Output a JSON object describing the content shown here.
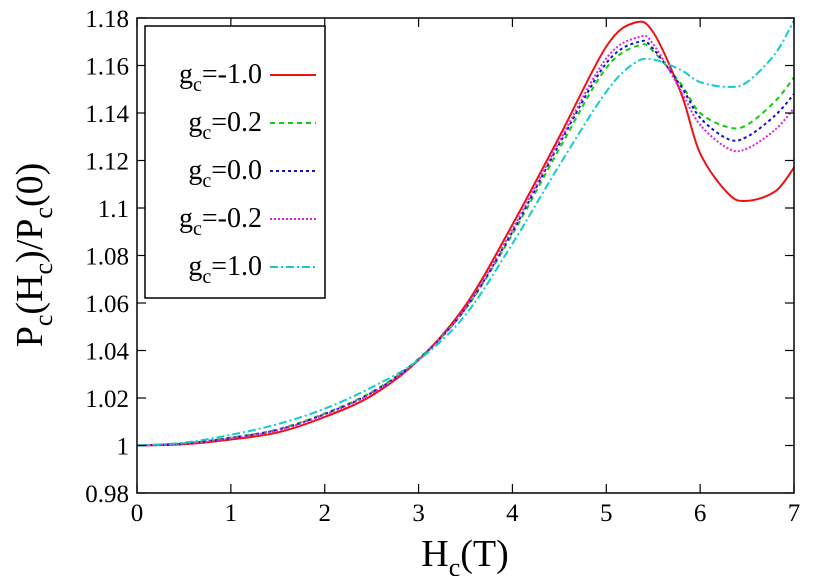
{
  "chart_data": {
    "type": "line",
    "xlabel_main": "H",
    "xlabel_sub": "c",
    "xlabel_tail": "(T)",
    "ylabel_parts": {
      "p1": "P",
      "s1": "c",
      "p2": "(H",
      "s2": "c",
      "p3": ")/P",
      "s3": "c",
      "p4": "(0)"
    },
    "xlim": [
      0,
      7
    ],
    "ylim": [
      0.98,
      1.18
    ],
    "xticks": [
      0,
      1,
      2,
      3,
      4,
      5,
      6,
      7
    ],
    "xtick_labels": [
      "0",
      "1",
      "2",
      "3",
      "4",
      "5",
      "6",
      "7"
    ],
    "yticks": [
      0.98,
      1.0,
      1.02,
      1.04,
      1.06,
      1.08,
      1.1,
      1.12,
      1.14,
      1.16,
      1.18
    ],
    "ytick_labels": [
      "0.98",
      "1",
      "1.02",
      "1.04",
      "1.06",
      "1.08",
      "1.1",
      "1.12",
      "1.14",
      "1.16",
      "1.18"
    ],
    "grid": false,
    "legend_position": "top-left",
    "series": [
      {
        "name": "gc=-1.0",
        "label_main": "g",
        "label_sub": "c",
        "label_tail": "=-1.0",
        "color": "#ee1111",
        "dash": "",
        "x": [
          0,
          0.5,
          1.0,
          1.5,
          2.0,
          2.5,
          3.0,
          3.5,
          4.0,
          4.5,
          5.0,
          5.3,
          5.5,
          5.8,
          6.0,
          6.3,
          6.5,
          6.8,
          7.0
        ],
        "y": [
          1.0,
          1.0005,
          1.0025,
          1.0055,
          1.012,
          1.021,
          1.036,
          1.059,
          1.093,
          1.13,
          1.168,
          1.178,
          1.174,
          1.148,
          1.123,
          1.106,
          1.103,
          1.107,
          1.117
        ]
      },
      {
        "name": "gc=0.2",
        "label_main": "g",
        "label_sub": "c",
        "label_tail": "=0.2",
        "color": "#11cc11",
        "dash": "5,4",
        "x": [
          0,
          0.5,
          1.0,
          1.5,
          2.0,
          2.5,
          3.0,
          3.5,
          4.0,
          4.5,
          5.0,
          5.35,
          5.5,
          5.8,
          6.0,
          6.3,
          6.5,
          6.8,
          7.0
        ],
        "y": [
          1.0,
          1.0009,
          1.0033,
          1.0068,
          1.0135,
          1.0225,
          1.0365,
          1.0575,
          1.089,
          1.125,
          1.159,
          1.1685,
          1.166,
          1.152,
          1.14,
          1.134,
          1.135,
          1.145,
          1.155
        ]
      },
      {
        "name": "gc=0.0",
        "label_main": "g",
        "label_sub": "c",
        "label_tail": "=0.0",
        "color": "#1111cc",
        "dash": "3,3",
        "x": [
          0,
          0.5,
          1.0,
          1.5,
          2.0,
          2.5,
          3.0,
          3.5,
          4.0,
          4.5,
          5.0,
          5.35,
          5.5,
          5.8,
          6.0,
          6.3,
          6.5,
          6.8,
          7.0
        ],
        "y": [
          1.0,
          1.0008,
          1.0032,
          1.0066,
          1.0132,
          1.0222,
          1.0362,
          1.0577,
          1.09,
          1.127,
          1.161,
          1.17,
          1.167,
          1.151,
          1.138,
          1.129,
          1.13,
          1.139,
          1.148
        ]
      },
      {
        "name": "gc=-0.2",
        "label_main": "g",
        "label_sub": "c",
        "label_tail": "=-0.2",
        "color": "#dd22dd",
        "dash": "2,2",
        "x": [
          0,
          0.5,
          1.0,
          1.5,
          2.0,
          2.5,
          3.0,
          3.5,
          4.0,
          4.5,
          5.0,
          5.35,
          5.5,
          5.8,
          6.0,
          6.3,
          6.5,
          6.8,
          7.0
        ],
        "y": [
          1.0,
          1.0007,
          1.003,
          1.0064,
          1.013,
          1.022,
          1.036,
          1.058,
          1.091,
          1.128,
          1.163,
          1.172,
          1.169,
          1.149,
          1.135,
          1.125,
          1.125,
          1.133,
          1.142
        ]
      },
      {
        "name": "gc=1.0",
        "label_main": "g",
        "label_sub": "c",
        "label_tail": "=1.0",
        "color": "#11cccc",
        "dash": "8,3,2,3",
        "x": [
          0,
          0.5,
          1.0,
          1.5,
          2.0,
          2.5,
          3.0,
          3.5,
          4.0,
          4.5,
          5.0,
          5.3,
          5.5,
          5.8,
          6.0,
          6.3,
          6.5,
          6.8,
          7.0
        ],
        "y": [
          1.0,
          1.0012,
          1.0045,
          1.009,
          1.0155,
          1.0245,
          1.036,
          1.055,
          1.085,
          1.118,
          1.149,
          1.161,
          1.1625,
          1.158,
          1.153,
          1.151,
          1.153,
          1.165,
          1.179
        ]
      }
    ]
  }
}
